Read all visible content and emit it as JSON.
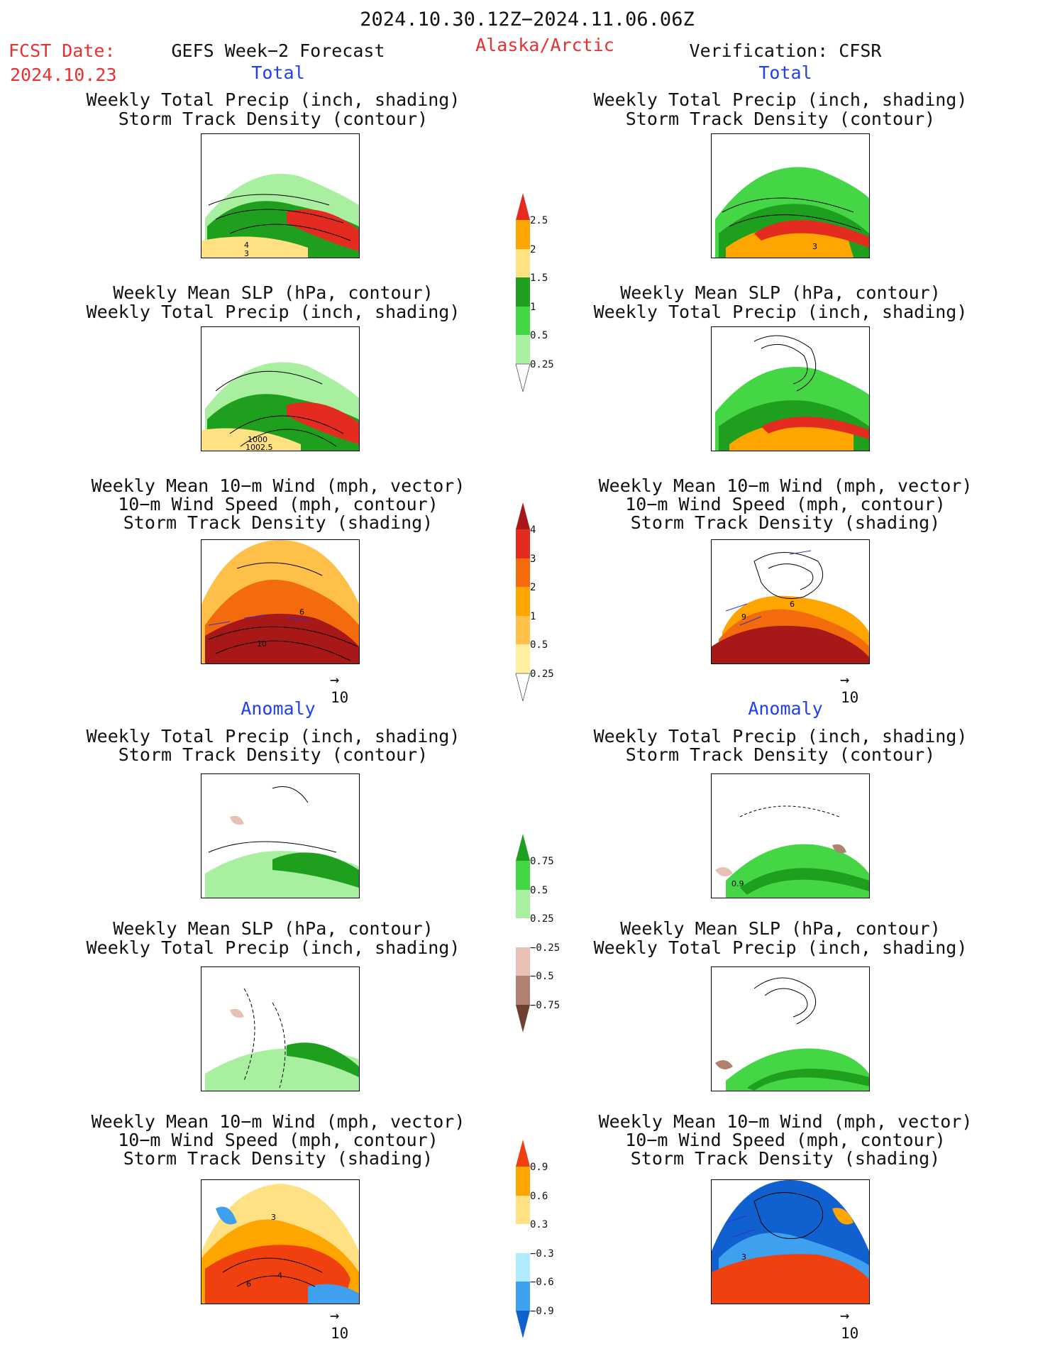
{
  "header": {
    "title": "2024.10.30.12Z−2024.11.06.06Z",
    "fcst_label": "FCST Date:",
    "fcst_date": "2024.10.23",
    "forecast_title": "GEFS Week−2 Forecast",
    "region": "Alaska/Arctic",
    "verification": "Verification: CFSR"
  },
  "sections": {
    "total": "Total",
    "anomaly": "Anomaly"
  },
  "titles": {
    "precip_track": [
      "Weekly Total Precip (inch, shading)",
      "Storm Track Density (contour)"
    ],
    "slp_precip": [
      "Weekly Mean SLP (hPa, contour)",
      "Weekly Total Precip (inch, shading)"
    ],
    "wind_track": [
      "Weekly Mean 10−m Wind (mph, vector)",
      "10−m Wind Speed (mph, contour)",
      "Storm Track Density (shading)"
    ]
  },
  "vector_ref": {
    "arrow": "→",
    "value": "10"
  },
  "contour_labels": {
    "fc_precip_track": [
      "4",
      "3"
    ],
    "fc_slp": [
      "1000",
      "1002.5"
    ],
    "fc_wind": [
      "6",
      "10"
    ],
    "vf_precip_track": [
      "3"
    ],
    "vf_wind": [
      "9",
      "6"
    ],
    "vf_anom_precip": [
      "0.9"
    ],
    "fc_anom_wind": [
      "3",
      "6",
      "4"
    ],
    "vf_anom_wind": [
      "3"
    ]
  },
  "colorbars": {
    "precip": {
      "labels": [
        "2.5",
        "2",
        "1.5",
        "1",
        "0.5",
        "0.25"
      ],
      "colors": [
        "#e32b1f",
        "#ffa500",
        "#ffe082",
        "#1ea01e",
        "#44d644",
        "#a8f0a0"
      ]
    },
    "track": {
      "labels": [
        "4",
        "3",
        "2",
        "1",
        "0.5",
        "0.25"
      ],
      "colors": [
        "#a81818",
        "#e32b1f",
        "#f36b0d",
        "#ffa500",
        "#ffc04a",
        "#fff0a0"
      ]
    },
    "precip_anom": {
      "labels": [
        "0.75",
        "0.5",
        "0.25",
        "−0.25",
        "−0.5",
        "−0.75"
      ],
      "colors": [
        "#1ea01e",
        "#44d644",
        "#a8f0a0",
        "#ffffff",
        "#e8c0b4",
        "#b08070",
        "#6e4030"
      ]
    },
    "wind_anom": {
      "labels": [
        "0.9",
        "0.6",
        "0.3",
        "−0.3",
        "−0.6",
        "−0.9"
      ],
      "colors": [
        "#f04010",
        "#ffa500",
        "#ffe082",
        "#ffffff",
        "#b0ecff",
        "#40a0f0",
        "#1060d0"
      ]
    }
  }
}
